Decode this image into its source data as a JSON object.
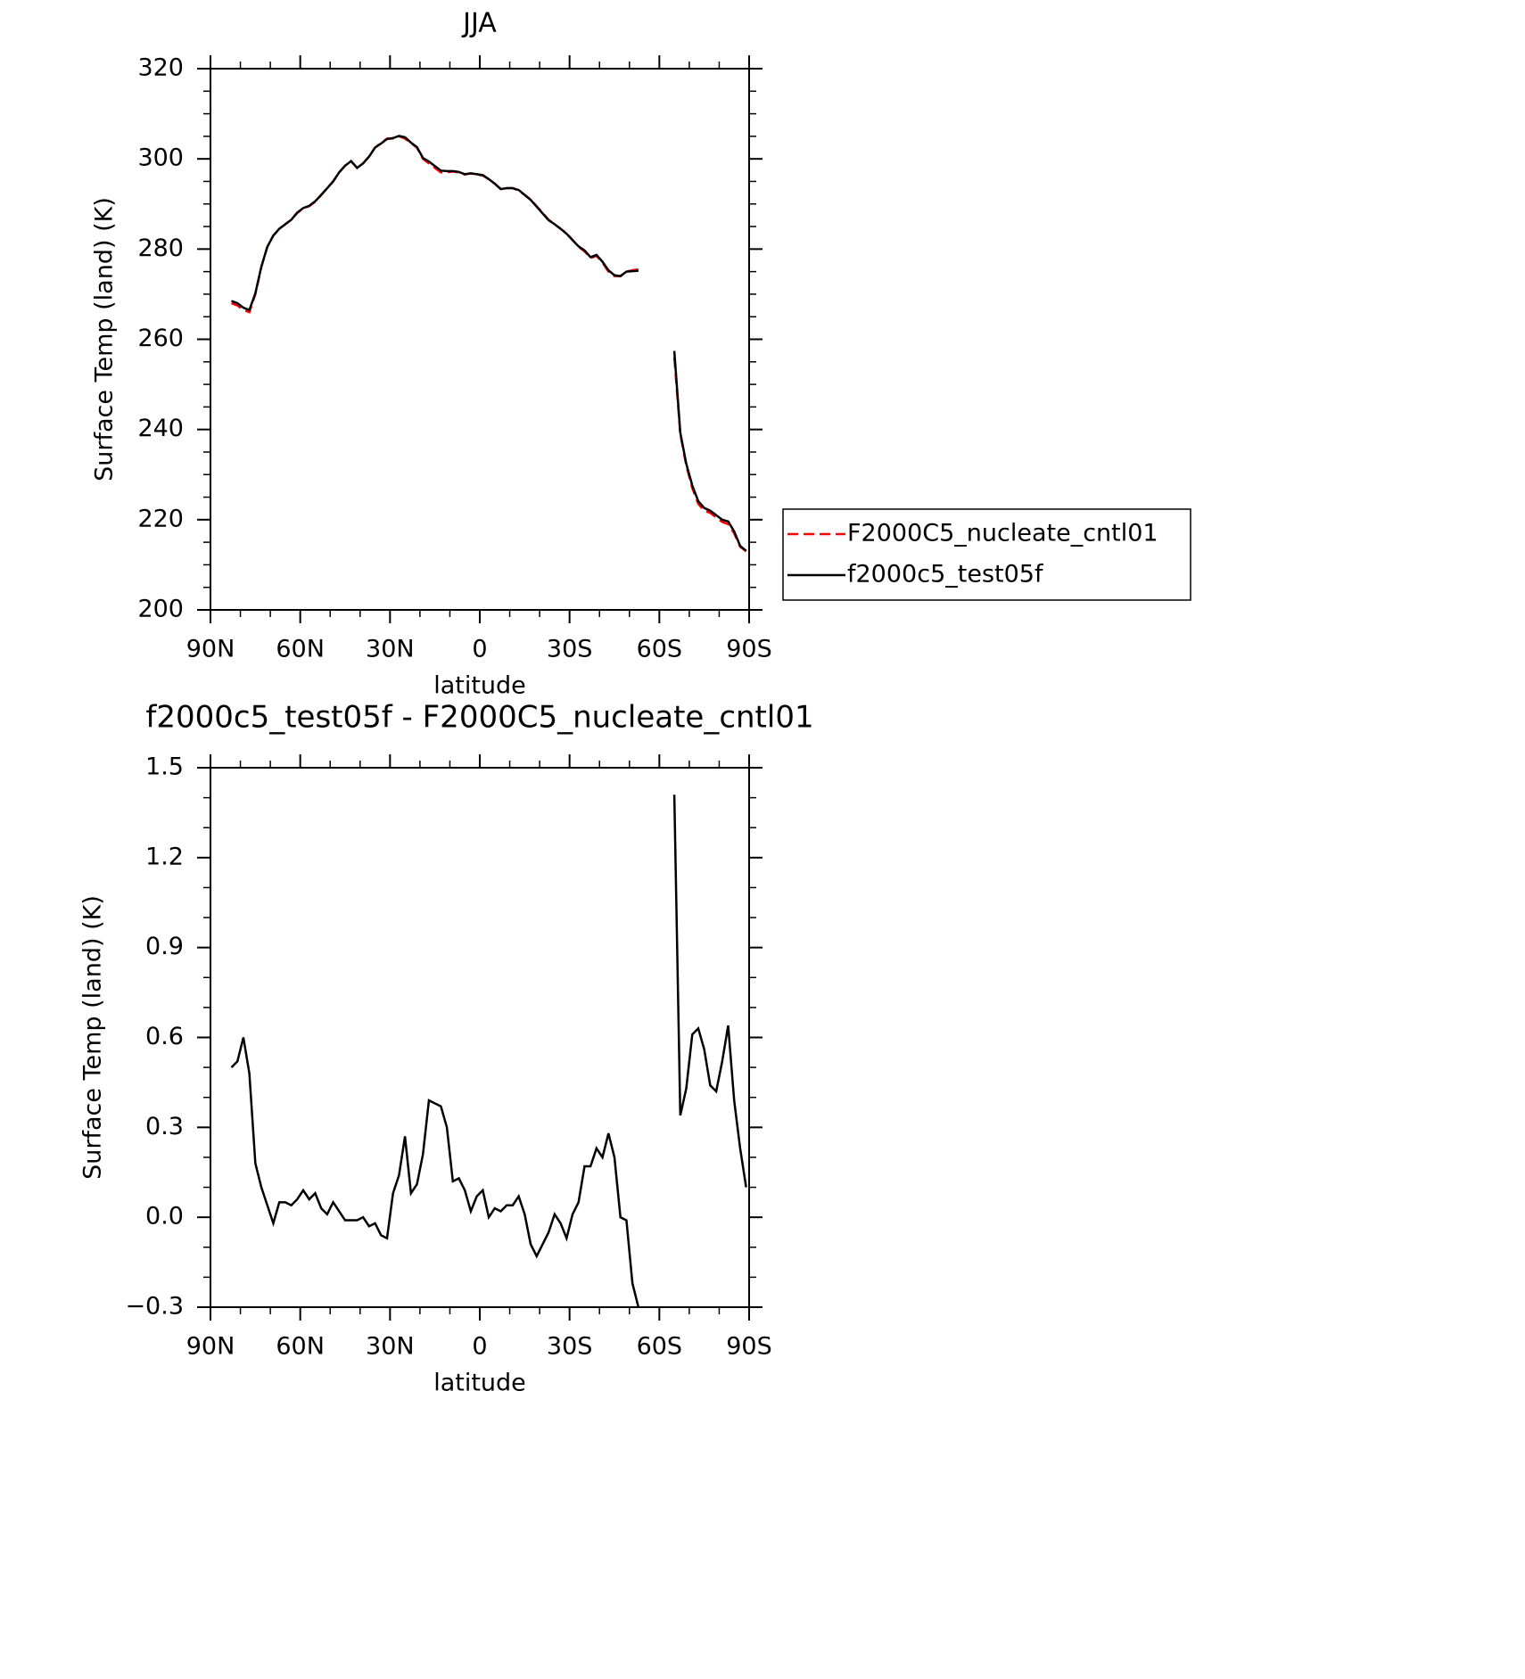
{
  "chart_data": [
    {
      "type": "line",
      "title": "JJA",
      "xlabel": "latitude",
      "ylabel": "Surface Temp (land) (K)",
      "x": [
        83,
        81,
        79,
        77,
        75,
        73,
        71,
        69,
        67,
        65,
        63,
        61,
        59,
        57,
        55,
        53,
        51,
        49,
        47,
        45,
        43,
        41,
        39,
        37,
        35,
        33,
        31,
        29,
        27,
        25,
        23,
        21,
        19,
        17,
        15,
        13,
        11,
        9,
        7,
        5,
        3,
        1,
        -1,
        -3,
        -5,
        -7,
        -9,
        -11,
        -13,
        -15,
        -17,
        -19,
        -21,
        -23,
        -25,
        -27,
        -29,
        -31,
        -33,
        -35,
        -37,
        -39,
        -41,
        -43,
        -45,
        -47,
        -49,
        -51,
        -53,
        -55,
        -57,
        -59,
        -61,
        -63,
        -65,
        -67,
        -69,
        -71,
        -73,
        -75,
        -77,
        -79,
        -81,
        -83,
        -85,
        -87,
        -89
      ],
      "xlim": [
        90,
        -90
      ],
      "xticks": [
        {
          "value": 90,
          "label": "90N"
        },
        {
          "value": 60,
          "label": "60N"
        },
        {
          "value": 30,
          "label": "30N"
        },
        0,
        {
          "value": -30,
          "label": "30S"
        },
        {
          "value": -60,
          "label": "60S"
        },
        {
          "value": -90,
          "label": "90S"
        }
      ],
      "ylim": [
        200,
        320
      ],
      "yticks": [
        200,
        220,
        240,
        260,
        280,
        300,
        320
      ],
      "legend": "right",
      "series": [
        {
          "name": "F2000C5_nucleate_cntl01",
          "color": "#ff0000",
          "dashed": true,
          "values": [
            268,
            267.5,
            266.5,
            266,
            270,
            276,
            280.5,
            283,
            284.5,
            285.5,
            286.5,
            288,
            289,
            289.5,
            290.5,
            292,
            293.5,
            295,
            297,
            298.5,
            299.5,
            298,
            299,
            300.5,
            302.5,
            303.5,
            304.5,
            304.5,
            305,
            304.5,
            303.5,
            302.5,
            300,
            299,
            298,
            297,
            297,
            297.2,
            297,
            296.5,
            296.8,
            296.5,
            296.3,
            295.5,
            294.5,
            293.3,
            293.5,
            293.5,
            293,
            292,
            291,
            289.5,
            288,
            286.5,
            285.5,
            284.5,
            283.5,
            282,
            280.5,
            279.5,
            278,
            278.5,
            277,
            275,
            274,
            274,
            275,
            275.3,
            275.5,
            null,
            null,
            null,
            null,
            null,
            256,
            239,
            232,
            227,
            223.5,
            222,
            221.5,
            220.5,
            219.5,
            219,
            217,
            214,
            213
          ]
        },
        {
          "name": "f2000c5_test05f",
          "color": "#000000",
          "dashed": false,
          "values": [
            268.5,
            268,
            267,
            266.5,
            270.2,
            276.1,
            280.5,
            283,
            284.5,
            285.5,
            286.5,
            288.1,
            289.1,
            289.6,
            290.6,
            292,
            293.5,
            295,
            297,
            298.5,
            299.5,
            298,
            299,
            300.5,
            302.5,
            303.4,
            304.4,
            304.6,
            305.1,
            304.8,
            303.6,
            302.6,
            300.2,
            299.4,
            298.4,
            297.4,
            297.3,
            297.3,
            297.1,
            296.6,
            296.8,
            296.6,
            296.4,
            295.5,
            294.5,
            293.3,
            293.5,
            293.5,
            293.1,
            292,
            290.9,
            289.4,
            287.9,
            286.4,
            285.5,
            284.5,
            283.4,
            282,
            280.6,
            279.7,
            278.2,
            278.7,
            277.2,
            275.3,
            274.2,
            274,
            275,
            275.1,
            275.2,
            null,
            null,
            null,
            null,
            null,
            257.4,
            239.3,
            232.4,
            227.6,
            224.1,
            222.6,
            222,
            221,
            220,
            219.6,
            217.4,
            214.2,
            213.1
          ]
        }
      ]
    },
    {
      "type": "line",
      "title": "f2000c5_test05f - F2000C5_nucleate_cntl01",
      "xlabel": "latitude",
      "ylabel": "Surface Temp (land) (K)",
      "x": [
        83,
        81,
        79,
        77,
        75,
        73,
        71,
        69,
        67,
        65,
        63,
        61,
        59,
        57,
        55,
        53,
        51,
        49,
        47,
        45,
        43,
        41,
        39,
        37,
        35,
        33,
        31,
        29,
        27,
        25,
        23,
        21,
        19,
        17,
        15,
        13,
        11,
        9,
        7,
        5,
        3,
        1,
        -1,
        -3,
        -5,
        -7,
        -9,
        -11,
        -13,
        -15,
        -17,
        -19,
        -21,
        -23,
        -25,
        -27,
        -29,
        -31,
        -33,
        -35,
        -37,
        -39,
        -41,
        -43,
        -45,
        -47,
        -49,
        -51,
        -53,
        -55,
        -57,
        -59,
        -61,
        -63,
        -65,
        -67,
        -69,
        -71,
        -73,
        -75,
        -77,
        -79,
        -81,
        -83,
        -85,
        -87,
        -89
      ],
      "xlim": [
        90,
        -90
      ],
      "xticks": [
        {
          "value": 90,
          "label": "90N"
        },
        {
          "value": 60,
          "label": "60N"
        },
        {
          "value": 30,
          "label": "30N"
        },
        0,
        {
          "value": -30,
          "label": "30S"
        },
        {
          "value": -60,
          "label": "60S"
        },
        {
          "value": -90,
          "label": "90S"
        }
      ],
      "ylim": [
        -0.3,
        1.5
      ],
      "yticks": [
        {
          "value": -0.3,
          "label": "−0.3"
        },
        {
          "value": 0,
          "label": "0.0"
        },
        0.3,
        0.6,
        0.9,
        1.2,
        1.5
      ],
      "series": [
        {
          "color": "#000000",
          "dashed": false,
          "values": [
            0.5,
            0.52,
            0.6,
            0.48,
            0.18,
            0.1,
            0.04,
            -0.02,
            0.05,
            0.05,
            0.04,
            0.06,
            0.09,
            0.06,
            0.08,
            0.03,
            0.01,
            0.05,
            0.02,
            -0.01,
            -0.01,
            -0.01,
            0,
            -0.03,
            -0.02,
            -0.06,
            -0.07,
            0.08,
            0.14,
            0.27,
            0.08,
            0.11,
            0.21,
            0.39,
            0.38,
            0.37,
            0.3,
            0.12,
            0.13,
            0.09,
            0.02,
            0.07,
            0.09,
            0,
            0.03,
            0.02,
            0.04,
            0.04,
            0.07,
            0.01,
            -0.09,
            -0.13,
            -0.09,
            -0.05,
            0.01,
            -0.02,
            -0.07,
            0.01,
            0.05,
            0.17,
            0.17,
            0.23,
            0.2,
            0.28,
            0.2,
            0,
            -0.01,
            -0.22,
            -0.3,
            null,
            null,
            null,
            null,
            null,
            1.41,
            0.34,
            0.43,
            0.61,
            0.63,
            0.56,
            0.44,
            0.42,
            0.52,
            0.64,
            0.39,
            0.23,
            0.1
          ]
        }
      ]
    }
  ]
}
